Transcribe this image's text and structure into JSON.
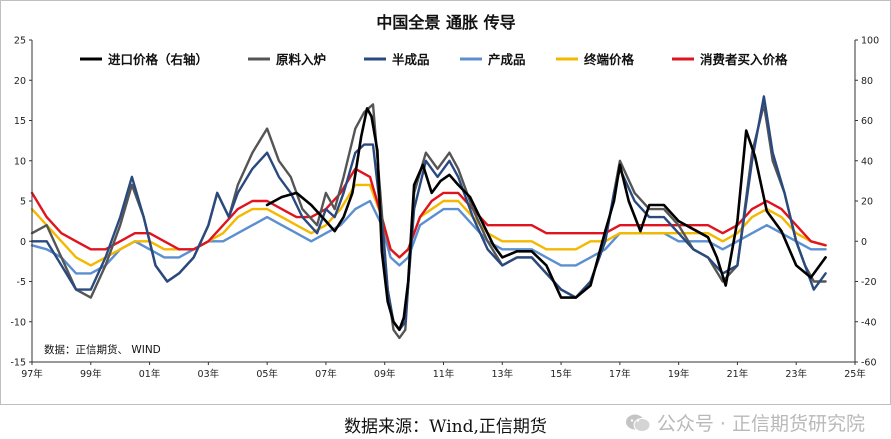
{
  "chart_data": {
    "type": "line",
    "title": "中国全景  通胀 传导",
    "x_tick_labels": [
      "97年",
      "99年",
      "01年",
      "03年",
      "05年",
      "07年",
      "09年",
      "11年",
      "13年",
      "15年",
      "17年",
      "19年",
      "21年",
      "23年",
      "25年"
    ],
    "x_tick_years": [
      1997,
      1999,
      2001,
      2003,
      2005,
      2007,
      2009,
      2011,
      2013,
      2015,
      2017,
      2019,
      2021,
      2023,
      2025
    ],
    "xlim": [
      1997,
      2025
    ],
    "ylim_left": [
      -15,
      25
    ],
    "yticks_left": [
      "25",
      "20",
      "15",
      "10",
      "5",
      "0",
      "-5",
      "-10",
      "-15"
    ],
    "ylim_right": [
      -60,
      100
    ],
    "yticks_right": [
      "100",
      "80",
      "60",
      "40",
      "20",
      "0",
      "-20",
      "-40",
      "-60"
    ],
    "grid": false,
    "legend_position": "top",
    "inner_note": "数据：正信期货、 WIND",
    "series": [
      {
        "name": "进口价格（右轴）",
        "color": "#000000",
        "axis": "right",
        "x": [
          2005.0,
          2005.5,
          2006.0,
          2006.5,
          2007.0,
          2007.3,
          2007.6,
          2007.9,
          2008.2,
          2008.4,
          2008.55,
          2008.75,
          2008.9,
          2009.1,
          2009.3,
          2009.5,
          2009.65,
          2009.8,
          2010.0,
          2010.3,
          2010.6,
          2010.9,
          2011.2,
          2011.5,
          2011.9,
          2012.3,
          2012.7,
          2013.0,
          2013.5,
          2014.0,
          2014.5,
          2015.0,
          2015.5,
          2016.0,
          2016.5,
          2016.8,
          2017.0,
          2017.3,
          2017.7,
          2018.0,
          2018.5,
          2019.0,
          2019.5,
          2020.0,
          2020.3,
          2020.6,
          2021.0,
          2021.3,
          2021.6,
          2022.0,
          2022.5,
          2023.0,
          2023.5,
          2024.0
        ],
        "values": [
          18,
          22,
          24,
          18,
          10,
          5,
          12,
          24,
          52,
          66,
          62,
          45,
          -5,
          -30,
          -40,
          -44,
          -38,
          -20,
          28,
          38,
          24,
          30,
          33,
          28,
          22,
          10,
          -2,
          -8,
          -5,
          -5,
          -12,
          -28,
          -28,
          -22,
          5,
          20,
          38,
          20,
          5,
          18,
          18,
          10,
          6,
          2,
          -8,
          -22,
          10,
          55,
          42,
          15,
          5,
          -12,
          -18,
          -8
        ]
      },
      {
        "name": "原料入炉",
        "color": "#555555",
        "axis": "left",
        "x": [
          1997.0,
          1997.5,
          1998.0,
          1998.5,
          1999.0,
          1999.5,
          2000.0,
          2000.4,
          2000.8,
          2001.2,
          2001.6,
          2002.0,
          2002.5,
          2003.0,
          2003.3,
          2003.7,
          2004.0,
          2004.5,
          2005.0,
          2005.4,
          2005.8,
          2006.2,
          2006.7,
          2007.0,
          2007.3,
          2007.6,
          2008.0,
          2008.3,
          2008.6,
          2008.85,
          2009.1,
          2009.3,
          2009.5,
          2009.7,
          2010.0,
          2010.4,
          2010.8,
          2011.2,
          2011.5,
          2012.0,
          2012.5,
          2013.0,
          2013.5,
          2014.0,
          2014.5,
          2015.0,
          2015.5,
          2016.0,
          2016.5,
          2016.8,
          2017.0,
          2017.5,
          2018.0,
          2018.5,
          2019.0,
          2019.5,
          2020.0,
          2020.5,
          2021.0,
          2021.5,
          2021.9,
          2022.2,
          2022.6,
          2023.0,
          2023.3,
          2023.6,
          2024.0
        ],
        "values": [
          1,
          2,
          -2,
          -6,
          -7,
          -3,
          2,
          7,
          3,
          -3,
          -5,
          -4,
          -2,
          2,
          6,
          3,
          7,
          11,
          14,
          10,
          8,
          4,
          2,
          6,
          4,
          8,
          14,
          16,
          17,
          6,
          -6,
          -11,
          -12,
          -11,
          6,
          11,
          9,
          11,
          9,
          4,
          0,
          -3,
          -2,
          -2,
          -4,
          -6,
          -7,
          -5,
          0,
          6,
          10,
          6,
          4,
          4,
          2,
          -1,
          -2,
          -5,
          -3,
          11,
          17,
          10,
          6,
          0,
          -3,
          -5,
          -5
        ]
      },
      {
        "name": "半成品",
        "color": "#2a4a7f",
        "axis": "left",
        "x": [
          1997.0,
          1997.5,
          1998.0,
          1998.5,
          1999.0,
          1999.5,
          2000.0,
          2000.4,
          2000.8,
          2001.2,
          2001.6,
          2002.0,
          2002.5,
          2003.0,
          2003.3,
          2003.7,
          2004.0,
          2004.5,
          2005.0,
          2005.4,
          2005.8,
          2006.2,
          2006.7,
          2007.0,
          2007.3,
          2007.6,
          2008.0,
          2008.3,
          2008.6,
          2008.85,
          2009.1,
          2009.3,
          2009.5,
          2009.7,
          2010.0,
          2010.4,
          2010.8,
          2011.2,
          2011.5,
          2012.0,
          2012.5,
          2013.0,
          2013.5,
          2014.0,
          2014.5,
          2015.0,
          2015.5,
          2016.0,
          2016.5,
          2016.8,
          2017.0,
          2017.5,
          2018.0,
          2018.5,
          2019.0,
          2019.5,
          2020.0,
          2020.5,
          2021.0,
          2021.5,
          2021.9,
          2022.2,
          2022.6,
          2023.0,
          2023.3,
          2023.6,
          2024.0
        ],
        "values": [
          0,
          0,
          -3,
          -6,
          -6,
          -2,
          3,
          8,
          3,
          -3,
          -5,
          -4,
          -2,
          2,
          6,
          3,
          6,
          9,
          11,
          8,
          6,
          3,
          1,
          4,
          3,
          6,
          11,
          12,
          12,
          4,
          -6,
          -10,
          -11,
          -10,
          4,
          10,
          8,
          10,
          8,
          3,
          -1,
          -3,
          -2,
          -2,
          -4,
          -6,
          -7,
          -5,
          0,
          6,
          9,
          5,
          3,
          3,
          1,
          -1,
          -2,
          -4,
          -3,
          10,
          18,
          11,
          6,
          0,
          -3,
          -6,
          -4
        ]
      },
      {
        "name": "产成品",
        "color": "#5b8fd0",
        "axis": "left",
        "x": [
          1997.0,
          1997.5,
          1998.0,
          1998.5,
          1999.0,
          1999.5,
          2000.0,
          2000.5,
          2001.0,
          2001.5,
          2002.0,
          2002.5,
          2003.0,
          2003.5,
          2004.0,
          2004.5,
          2005.0,
          2005.5,
          2006.0,
          2006.5,
          2007.0,
          2007.5,
          2008.0,
          2008.5,
          2008.9,
          2009.2,
          2009.5,
          2009.8,
          2010.2,
          2010.6,
          2011.0,
          2011.5,
          2012.0,
          2012.5,
          2013.0,
          2013.5,
          2014.0,
          2014.5,
          2015.0,
          2015.5,
          2016.0,
          2016.5,
          2017.0,
          2017.5,
          2018.0,
          2018.5,
          2019.0,
          2019.5,
          2020.0,
          2020.5,
          2021.0,
          2021.5,
          2022.0,
          2022.5,
          2023.0,
          2023.5,
          2024.0
        ],
        "values": [
          -0.5,
          -1,
          -2,
          -4,
          -4,
          -3,
          -1,
          0,
          -1,
          -2,
          -2,
          -1,
          0,
          0,
          1,
          2,
          3,
          2,
          1,
          0,
          1,
          2,
          4,
          5,
          2,
          -2,
          -3,
          -2,
          2,
          3,
          4,
          4,
          2,
          0,
          -1,
          -1,
          -1,
          -2,
          -3,
          -3,
          -2,
          -1,
          1,
          1,
          1,
          1,
          0,
          0,
          0,
          -1,
          0,
          1,
          2,
          1,
          0,
          -1,
          -1
        ]
      },
      {
        "name": "终端价格",
        "color": "#f5b800",
        "axis": "left",
        "x": [
          1997.0,
          1997.5,
          1998.0,
          1998.5,
          1999.0,
          1999.5,
          2000.0,
          2000.5,
          2001.0,
          2001.5,
          2002.0,
          2002.5,
          2003.0,
          2003.5,
          2004.0,
          2004.5,
          2005.0,
          2005.5,
          2006.0,
          2006.5,
          2007.0,
          2007.5,
          2008.0,
          2008.5,
          2008.9,
          2009.2,
          2009.5,
          2009.8,
          2010.2,
          2010.6,
          2011.0,
          2011.5,
          2012.0,
          2012.5,
          2013.0,
          2013.5,
          2014.0,
          2014.5,
          2015.0,
          2015.5,
          2016.0,
          2016.5,
          2017.0,
          2017.5,
          2018.0,
          2018.5,
          2019.0,
          2019.5,
          2020.0,
          2020.5,
          2021.0,
          2021.5,
          2022.0,
          2022.5,
          2023.0,
          2023.5,
          2024.0
        ],
        "values": [
          4,
          2,
          0,
          -2,
          -3,
          -2,
          -1,
          0,
          0,
          -1,
          -1,
          -1,
          0,
          1,
          3,
          4,
          4,
          3,
          2,
          1,
          2,
          4,
          7,
          7,
          3,
          -1,
          -2,
          -1,
          3,
          4,
          5,
          5,
          3,
          1,
          0,
          0,
          0,
          -1,
          -1,
          -1,
          0,
          0,
          1,
          1,
          1,
          1,
          1,
          1,
          1,
          0,
          1,
          3,
          4,
          3,
          1,
          0,
          -0.5
        ]
      },
      {
        "name": "消费者买入价格",
        "color": "#e0141e",
        "axis": "left",
        "x": [
          1997.0,
          1997.5,
          1998.0,
          1998.5,
          1999.0,
          1999.5,
          2000.0,
          2000.5,
          2001.0,
          2001.5,
          2002.0,
          2002.5,
          2003.0,
          2003.5,
          2004.0,
          2004.5,
          2005.0,
          2005.5,
          2006.0,
          2006.5,
          2007.0,
          2007.5,
          2008.0,
          2008.5,
          2008.9,
          2009.2,
          2009.5,
          2009.8,
          2010.2,
          2010.6,
          2011.0,
          2011.5,
          2012.0,
          2012.5,
          2013.0,
          2013.5,
          2014.0,
          2014.5,
          2015.0,
          2015.5,
          2016.0,
          2016.5,
          2017.0,
          2017.5,
          2018.0,
          2018.5,
          2019.0,
          2019.5,
          2020.0,
          2020.5,
          2021.0,
          2021.5,
          2022.0,
          2022.5,
          2023.0,
          2023.5,
          2024.0
        ],
        "values": [
          6,
          3,
          1,
          0,
          -1,
          -1,
          0,
          1,
          1,
          0,
          -1,
          -1,
          0,
          2,
          4,
          5,
          5,
          4,
          3,
          3,
          4,
          6,
          9,
          8,
          3,
          -1,
          -2,
          -1,
          3,
          5,
          6,
          6,
          4,
          2,
          2,
          2,
          2,
          1,
          1,
          1,
          1,
          1,
          2,
          2,
          2,
          2,
          2,
          2,
          2,
          1,
          2,
          4,
          5,
          4,
          2,
          0,
          -0.5
        ]
      }
    ]
  },
  "caption": {
    "source_text": "数据来源：Wind,正信期货",
    "watermark_text": "公众号 · 正信期货研究院"
  }
}
